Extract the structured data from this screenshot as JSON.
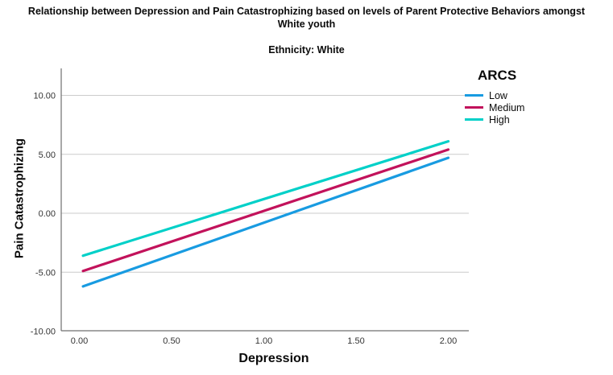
{
  "header": {
    "title_line1": "Relationship between Depression and Pain Catastrophizing based on levels of Parent Protective Behaviors amongst",
    "title_line2": "White youth",
    "subtitle": "Ethnicity: White"
  },
  "chart_data": {
    "type": "line",
    "title": "Relationship between Depression and Pain Catastrophizing based on levels of Parent Protective Behaviors amongst White youth",
    "subtitle": "Ethnicity: White",
    "xlabel": "Depression",
    "ylabel": "Pain Catastrophizing",
    "legend_title": "ARCS",
    "legend_position": "top-right-outside",
    "grid": true,
    "xlim": [
      -0.1,
      2.1
    ],
    "ylim": [
      -10,
      10
    ],
    "xticks": [
      0,
      0.5,
      1,
      1.5,
      2
    ],
    "yticks": [
      10,
      5,
      0,
      -5,
      -10
    ],
    "x_tick_labels": [
      "0.00",
      "0.50",
      "1.00",
      "1.50",
      "2.00"
    ],
    "y_tick_labels": [
      "10.00",
      "5.00",
      "0.00",
      "-5.00",
      "-10.00"
    ],
    "x": [
      0.02,
      2.0
    ],
    "series": [
      {
        "name": "Low",
        "color": "#189BE1",
        "values": [
          -6.2,
          4.7
        ]
      },
      {
        "name": "Medium",
        "color": "#C2125B",
        "values": [
          -4.9,
          5.4
        ]
      },
      {
        "name": "High",
        "color": "#00D0C8",
        "values": [
          -3.6,
          6.1
        ]
      }
    ],
    "axis_color": "#6F6F6F",
    "grid_color": "#CBCBCB",
    "tick_label_color": "#333333"
  }
}
